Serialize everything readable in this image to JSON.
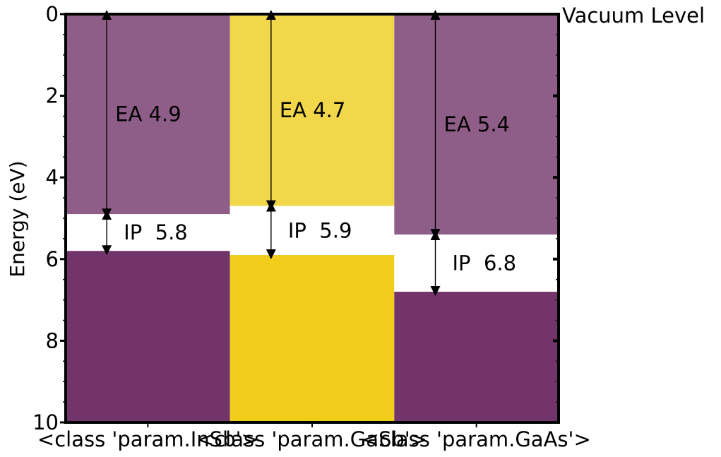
{
  "chart_data": {
    "type": "bar",
    "ylabel": "Energy (eV)",
    "ylim": [
      0,
      10
    ],
    "y_inverted": true,
    "yticks": [
      "0",
      "2",
      "4",
      "6",
      "8",
      "10"
    ],
    "yticks_values": [
      0,
      2,
      4,
      6,
      8,
      10
    ],
    "grid": false,
    "legend": "none",
    "annotation_right": "Vacuum Level",
    "categories": [
      "<class 'param.InSb'>",
      "<class 'param.GaSb'>",
      "<class 'param.GaAs'>"
    ],
    "materials": [
      {
        "ea": 4.9,
        "ip": 5.8,
        "ea_label": "EA 4.9",
        "ip_label": "IP  5.8",
        "color": "#8f5e88",
        "valence_color": "#72346a"
      },
      {
        "ea": 4.7,
        "ip": 5.9,
        "ea_label": "EA 4.7",
        "ip_label": "IP  5.9",
        "color": "#f2d74b",
        "valence_color": "#f0cc1b"
      },
      {
        "ea": 5.4,
        "ip": 6.8,
        "ea_label": "EA 5.4",
        "ip_label": "IP  6.8",
        "color": "#8f5e88",
        "valence_color": "#72346a"
      }
    ]
  }
}
